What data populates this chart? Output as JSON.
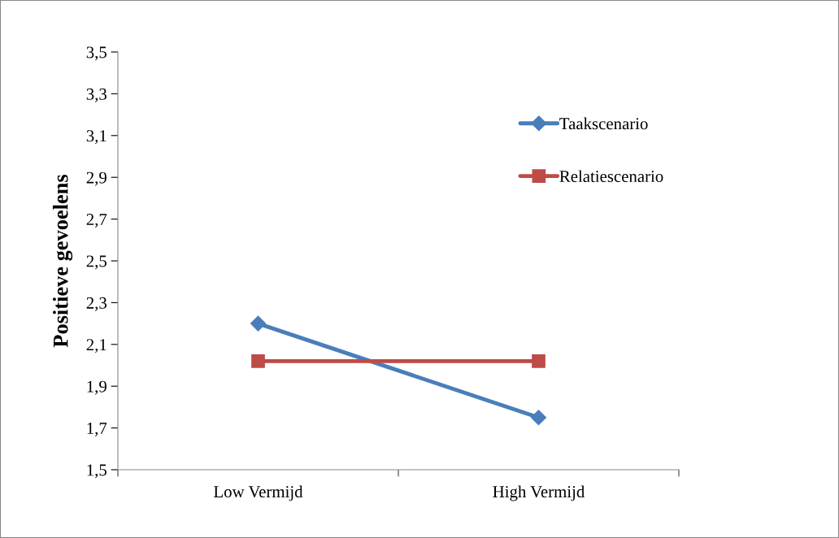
{
  "chart_data": {
    "type": "line",
    "ylabel": "Positieve gevoelens",
    "categories": [
      "Low Vermijd",
      "High Vermijd"
    ],
    "series": [
      {
        "name": "Taakscenario",
        "color": "#4a7ebb",
        "values": [
          2.2,
          1.75
        ],
        "marker": "diamond"
      },
      {
        "name": "Relatiescenario",
        "color": "#be4b48",
        "values": [
          2.02,
          2.02
        ],
        "marker": "square"
      }
    ],
    "ylim": [
      1.5,
      3.5
    ],
    "yticks": [
      {
        "value": 1.5,
        "label": "1,5"
      },
      {
        "value": 1.7,
        "label": "1,7"
      },
      {
        "value": 1.9,
        "label": "1,9"
      },
      {
        "value": 2.1,
        "label": "2,1"
      },
      {
        "value": 2.3,
        "label": "2,3"
      },
      {
        "value": 2.5,
        "label": "2,5"
      },
      {
        "value": 2.7,
        "label": "2,7"
      },
      {
        "value": 2.9,
        "label": "2,9"
      },
      {
        "value": 3.1,
        "label": "3,1"
      },
      {
        "value": 3.3,
        "label": "3,3"
      },
      {
        "value": 3.5,
        "label": "3,5"
      }
    ],
    "grid": false,
    "legend": "top right",
    "line_style": "solid"
  }
}
